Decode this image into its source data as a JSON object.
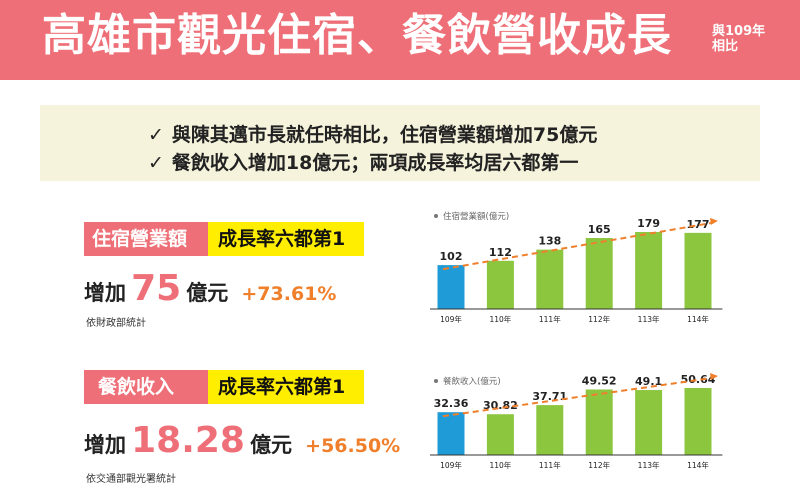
{
  "header": {
    "title": "高雄市觀光住宿、餐飲營收成長",
    "note_line1": "與109年",
    "note_line2": "相比",
    "bg_color": "#ee6f77"
  },
  "highlights": [
    {
      "check": "✓",
      "text": "與陳其邁市長就任時相比，住宿營業額增加75億元"
    },
    {
      "check": "✓",
      "text": "餐飲收入增加18億元；兩項成長率均居六都第一"
    }
  ],
  "lodging": {
    "tag_label": "住宿營業額",
    "rank_label": "成長率六都第1",
    "prefix": "增加",
    "amount": "75",
    "unit": "億元",
    "percent": "+73.61%",
    "source": "依財政部統計"
  },
  "dining": {
    "tag_label": "餐飲收入",
    "rank_label": "成長率六都第1",
    "prefix": "增加",
    "amount": "18.28",
    "unit": "億元",
    "percent": "+56.50%",
    "source": "依交通部觀光署統計"
  },
  "colors": {
    "first_bar": "#1f9bd7",
    "other_bars": "#8cc63f",
    "trend_line": "#f07f2b",
    "accent_red": "#ee6f77",
    "accent_yellow": "#ffee00"
  },
  "chart_data": [
    {
      "type": "bar",
      "legend": "住宿營業額(億元)",
      "categories": [
        "109年",
        "110年",
        "111年",
        "112年",
        "113年",
        "114年"
      ],
      "values": [
        102,
        112,
        138,
        165,
        179,
        177
      ],
      "value_labels": [
        "102",
        "112",
        "138",
        "165",
        "179",
        "177"
      ],
      "trend_line": "dashed",
      "ylim": [
        0,
        190
      ]
    },
    {
      "type": "bar",
      "legend": "餐飲收入(億元)",
      "categories": [
        "109年",
        "110年",
        "111年",
        "112年",
        "113年",
        "114年"
      ],
      "values": [
        32.36,
        30.82,
        37.71,
        49.52,
        49.1,
        50.64
      ],
      "value_labels": [
        "32.36",
        "30.82",
        "37.71",
        "49.52",
        "49.1",
        "50.64"
      ],
      "trend_line": "dashed",
      "ylim": [
        0,
        54
      ]
    }
  ]
}
